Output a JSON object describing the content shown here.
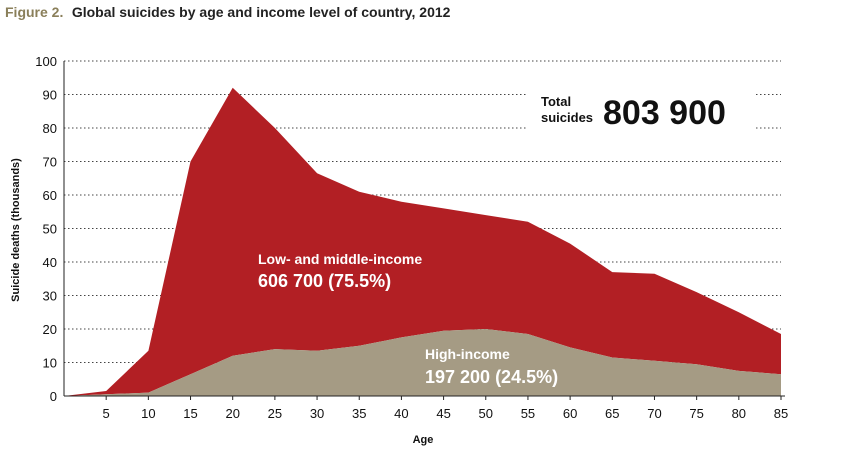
{
  "figure": {
    "prefix": "Figure 2.",
    "title": "Global suicides by age and income level of country, 2012"
  },
  "total": {
    "label_line1": "Total",
    "label_line2": "suicides",
    "value": "803 900"
  },
  "annotations": {
    "lmic_title": "Low- and middle-income",
    "lmic_value": "606 700 (75.5%)",
    "hic_title": "High-income",
    "hic_value": "197 200 (24.5%)"
  },
  "colors": {
    "low_middle_income": "#b21f24",
    "high_income": "#a59b84",
    "figure_label": "#8a7f5a"
  },
  "chart_data": {
    "type": "area",
    "stacked": true,
    "title": "Global suicides by age and income level of country, 2012",
    "xlabel": "Age",
    "ylabel": "Suicide deaths (thousands)",
    "xlim": [
      0,
      85
    ],
    "ylim": [
      0,
      100
    ],
    "grid": true,
    "x_ticks": [
      5,
      10,
      15,
      20,
      25,
      30,
      35,
      40,
      45,
      50,
      55,
      60,
      65,
      70,
      75,
      80,
      85
    ],
    "y_ticks": [
      0,
      10,
      20,
      30,
      40,
      50,
      60,
      70,
      80,
      90,
      100
    ],
    "x": [
      0,
      5,
      10,
      15,
      20,
      25,
      30,
      35,
      40,
      45,
      50,
      55,
      60,
      65,
      70,
      75,
      80,
      85
    ],
    "series": [
      {
        "name": "High-income",
        "values": [
          0,
          0.5,
          1,
          6.5,
          12,
          14,
          13.5,
          15,
          17.5,
          19.5,
          20,
          18.5,
          14.5,
          11.5,
          10.5,
          9.5,
          7.5,
          6.5
        ]
      },
      {
        "name": "Low- and middle-income",
        "values": [
          0,
          1,
          12.5,
          63.5,
          80,
          66,
          53,
          46,
          40.5,
          36.5,
          34,
          33.5,
          31,
          25.5,
          26,
          21.5,
          17.5,
          12
        ]
      }
    ]
  }
}
